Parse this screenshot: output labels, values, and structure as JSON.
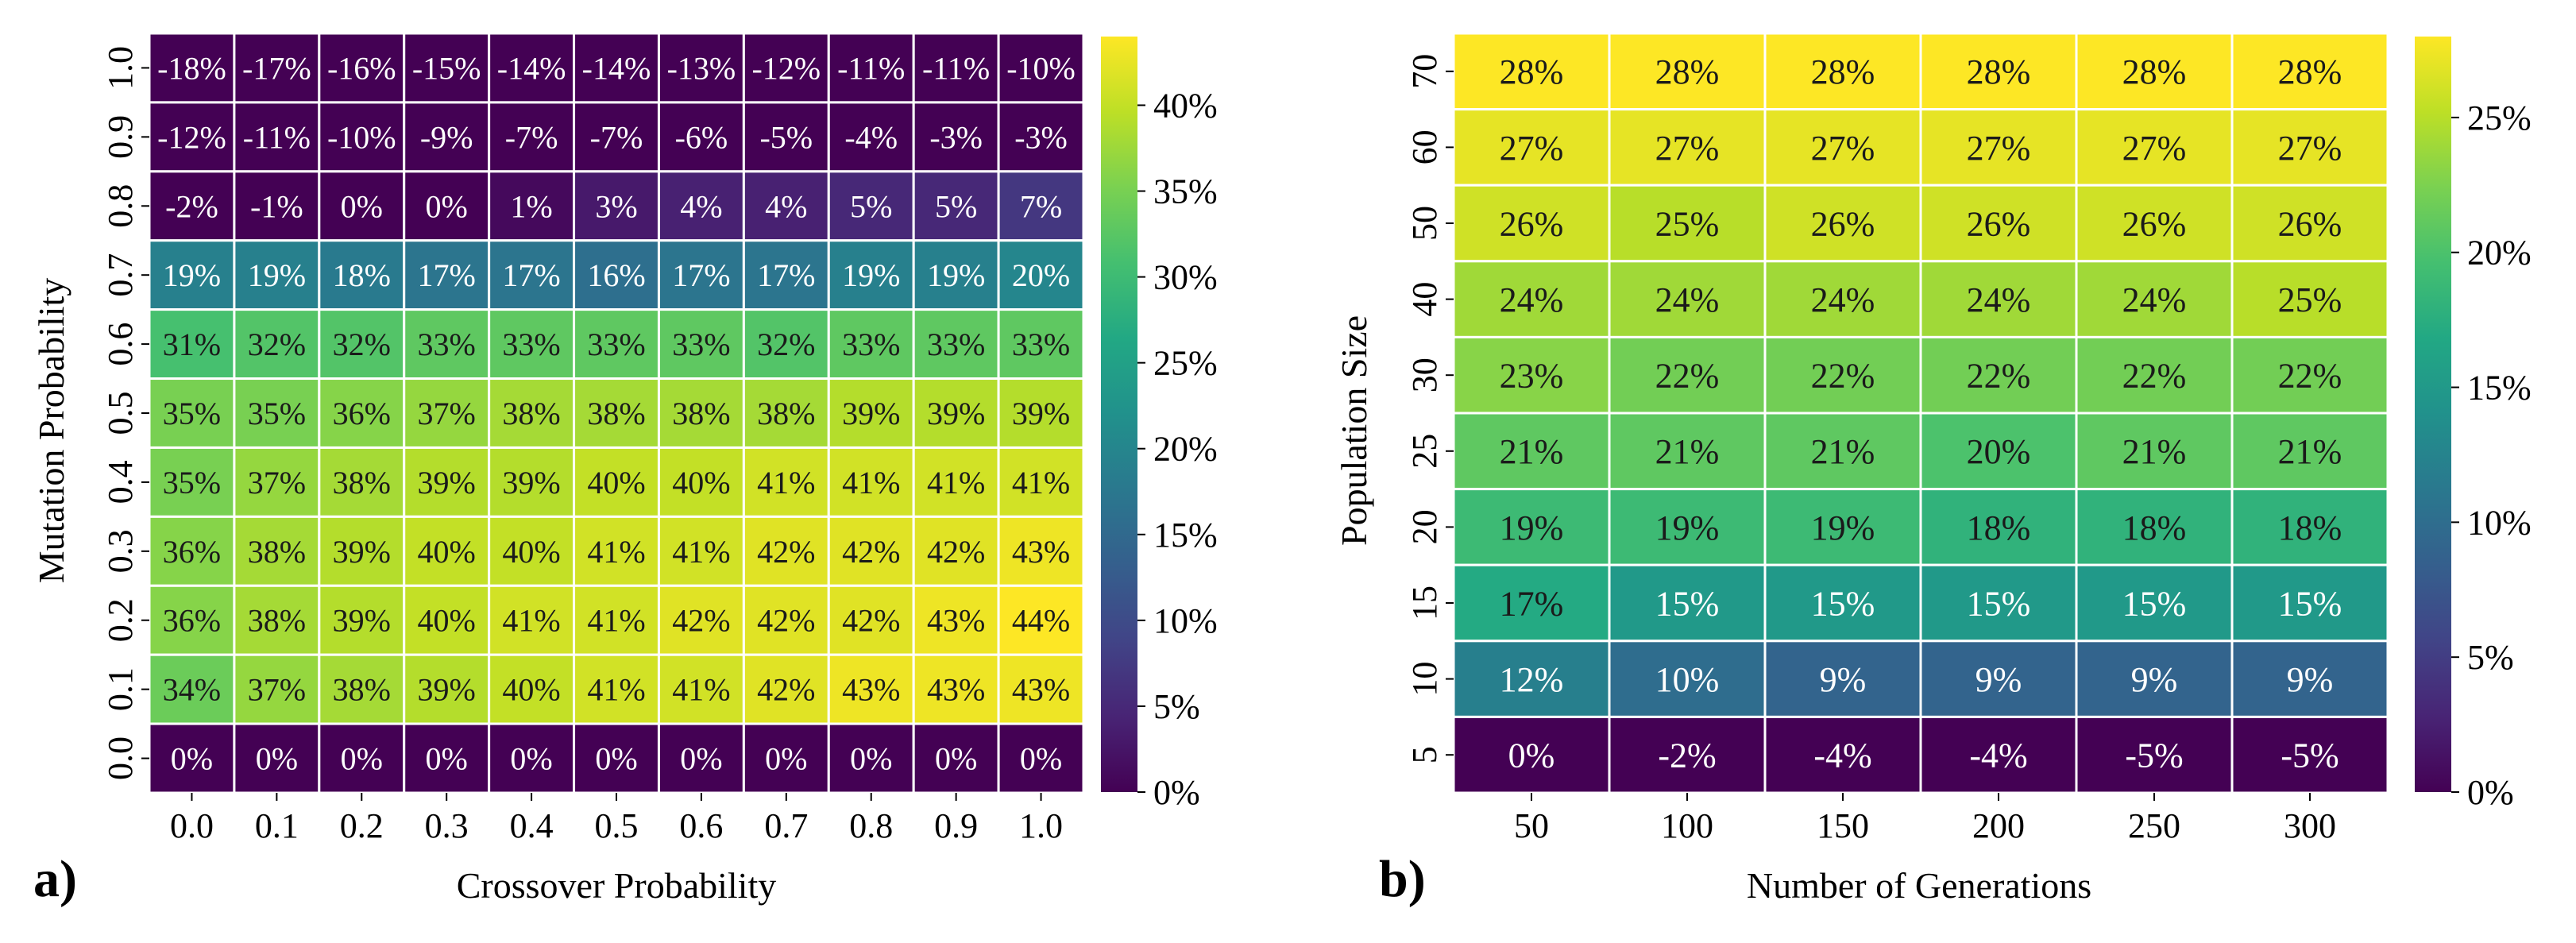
{
  "chart_data": [
    {
      "type": "heatmap",
      "panel_label": "a)",
      "xlabel": "Crossover Probability",
      "ylabel": "Mutation Probability",
      "x_categories": [
        "0.0",
        "0.1",
        "0.2",
        "0.3",
        "0.4",
        "0.5",
        "0.6",
        "0.7",
        "0.8",
        "0.9",
        "1.0"
      ],
      "y_categories": [
        "1.0",
        "0.9",
        "0.8",
        "0.7",
        "0.6",
        "0.5",
        "0.4",
        "0.3",
        "0.2",
        "0.1",
        "0.0"
      ],
      "values": [
        [
          -18,
          -17,
          -16,
          -15,
          -14,
          -14,
          -13,
          -12,
          -11,
          -11,
          -10
        ],
        [
          -12,
          -11,
          -10,
          -9,
          -7,
          -7,
          -6,
          -5,
          -4,
          -3,
          -3
        ],
        [
          -2,
          -1,
          0,
          0,
          1,
          3,
          4,
          4,
          5,
          5,
          7
        ],
        [
          19,
          19,
          18,
          17,
          17,
          16,
          17,
          17,
          19,
          19,
          20
        ],
        [
          31,
          32,
          32,
          33,
          33,
          33,
          33,
          32,
          33,
          33,
          33
        ],
        [
          35,
          35,
          36,
          37,
          38,
          38,
          38,
          38,
          39,
          39,
          39
        ],
        [
          35,
          37,
          38,
          39,
          39,
          40,
          40,
          41,
          41,
          41,
          41
        ],
        [
          36,
          38,
          39,
          40,
          40,
          41,
          41,
          42,
          42,
          42,
          43
        ],
        [
          36,
          38,
          39,
          40,
          41,
          41,
          42,
          42,
          42,
          43,
          44
        ],
        [
          34,
          37,
          38,
          39,
          40,
          41,
          41,
          42,
          43,
          43,
          43
        ],
        [
          0,
          0,
          0,
          0,
          0,
          0,
          0,
          0,
          0,
          0,
          0
        ]
      ],
      "value_suffix": "%",
      "colorbar": {
        "vmin": 0,
        "vmax": 44,
        "ticks": [
          0,
          5,
          10,
          15,
          20,
          25,
          30,
          35,
          40
        ],
        "tick_suffix": "%"
      },
      "colormap": "viridis"
    },
    {
      "type": "heatmap",
      "panel_label": "b)",
      "xlabel": "Number of Generations",
      "ylabel": "Population Size",
      "x_categories": [
        "50",
        "100",
        "150",
        "200",
        "250",
        "300"
      ],
      "y_categories": [
        "70",
        "60",
        "50",
        "40",
        "30",
        "25",
        "20",
        "15",
        "10",
        "5"
      ],
      "values": [
        [
          28,
          28,
          28,
          28,
          28,
          28
        ],
        [
          27,
          27,
          27,
          27,
          27,
          27
        ],
        [
          26,
          25,
          26,
          26,
          26,
          26
        ],
        [
          24,
          24,
          24,
          24,
          24,
          25
        ],
        [
          23,
          22,
          22,
          22,
          22,
          22
        ],
        [
          21,
          21,
          21,
          20,
          21,
          21
        ],
        [
          19,
          19,
          19,
          18,
          18,
          18
        ],
        [
          17,
          15,
          15,
          15,
          15,
          15
        ],
        [
          12,
          10,
          9,
          9,
          9,
          9
        ],
        [
          0,
          -2,
          -4,
          -4,
          -5,
          -5
        ]
      ],
      "value_suffix": "%",
      "colorbar": {
        "vmin": 0,
        "vmax": 28,
        "ticks": [
          0,
          5,
          10,
          15,
          20,
          25
        ],
        "tick_suffix": "%"
      },
      "colormap": "viridis"
    }
  ]
}
